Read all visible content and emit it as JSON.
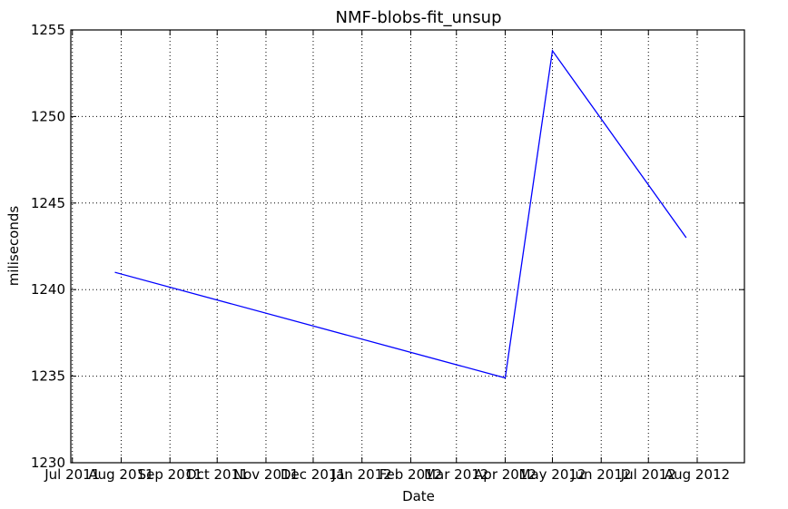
{
  "chart_data": {
    "type": "line",
    "title": "NMF-blobs-fit_unsup",
    "xlabel": "Date",
    "ylabel": "miliseconds",
    "x_ticks": [
      {
        "date": "2011-07-01",
        "label": "Jul 2011"
      },
      {
        "date": "2011-08-01",
        "label": "Aug 2011"
      },
      {
        "date": "2011-09-01",
        "label": "Sep 2011"
      },
      {
        "date": "2011-10-01",
        "label": "Oct 2011"
      },
      {
        "date": "2011-11-01",
        "label": "Nov 2011"
      },
      {
        "date": "2011-12-01",
        "label": "Dec 2011"
      },
      {
        "date": "2012-01-01",
        "label": "Jan 2012"
      },
      {
        "date": "2012-02-01",
        "label": "Feb 2012"
      },
      {
        "date": "2012-03-01",
        "label": "Mar 2012"
      },
      {
        "date": "2012-04-01",
        "label": "Apr 2012"
      },
      {
        "date": "2012-05-01",
        "label": "May 2012"
      },
      {
        "date": "2012-06-01",
        "label": "Jun 2012"
      },
      {
        "date": "2012-07-01",
        "label": "Jul 2012"
      },
      {
        "date": "2012-08-01",
        "label": "Aug 2012"
      }
    ],
    "y_ticks": [
      1230,
      1235,
      1240,
      1245,
      1250,
      1255
    ],
    "xlim": [
      "2011-06-30",
      "2012-08-31"
    ],
    "ylim": [
      1230,
      1255
    ],
    "grid": true,
    "series": [
      {
        "color": "#0000ff",
        "points": [
          {
            "x": "2011-07-28",
            "y": 1241.0
          },
          {
            "x": "2012-04-01",
            "y": 1234.9
          },
          {
            "x": "2012-05-01",
            "y": 1253.8
          },
          {
            "x": "2012-07-25",
            "y": 1243.0
          }
        ]
      }
    ]
  }
}
